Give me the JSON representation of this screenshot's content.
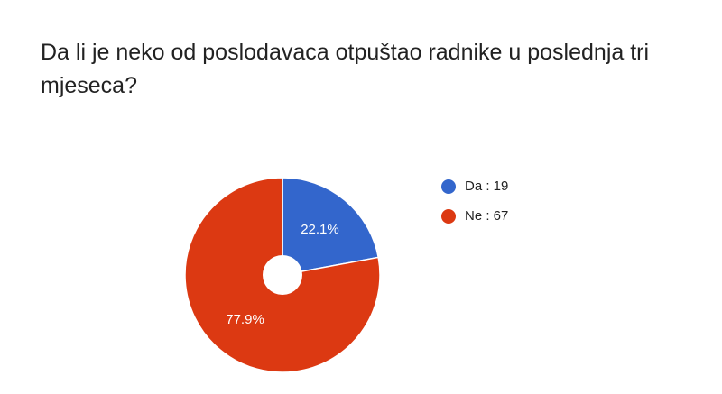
{
  "chart_data": {
    "type": "pie",
    "title": "Da li je neko od poslodavaca otpuštao radnike u poslednja tri mjeseca?",
    "categories": [
      "Da : 19",
      "Ne : 67"
    ],
    "values": [
      22.1,
      77.9
    ],
    "value_labels": [
      "22.1%",
      "77.9%"
    ],
    "colors": [
      "#3366cc",
      "#dc3912"
    ],
    "hole": true
  }
}
